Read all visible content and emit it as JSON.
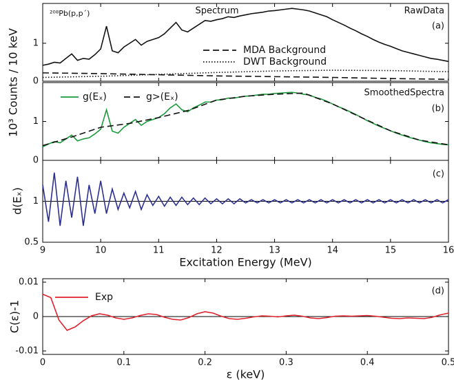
{
  "chart_data": [
    {
      "type": "line",
      "ylabel": "10³ Counts / 10 keV",
      "annotations": [
        "²⁰⁸Pb(p,p´)",
        "Spectrum",
        "RawData",
        "(a)"
      ],
      "xlim": [
        9,
        16
      ],
      "ylim": [
        0,
        2.05
      ],
      "xticks": [
        9,
        10,
        11,
        12,
        13,
        14,
        15,
        16
      ],
      "yticks": [
        0,
        1
      ],
      "x": [
        9,
        9.1,
        9.2,
        9.3,
        9.4,
        9.5,
        9.6,
        9.7,
        9.8,
        9.9,
        10,
        10.1,
        10.2,
        10.3,
        10.4,
        10.5,
        10.6,
        10.7,
        10.8,
        10.9,
        11,
        11.1,
        11.2,
        11.3,
        11.4,
        11.5,
        11.6,
        11.7,
        11.8,
        11.9,
        12,
        12.1,
        12.2,
        12.3,
        12.4,
        12.5,
        12.6,
        12.7,
        12.8,
        12.9,
        13,
        13.1,
        13.2,
        13.3,
        13.4,
        13.5,
        13.6,
        13.7,
        13.8,
        13.9,
        14,
        14.1,
        14.2,
        14.3,
        14.4,
        14.5,
        14.6,
        14.7,
        14.8,
        14.9,
        15,
        15.1,
        15.2,
        15.3,
        15.4,
        15.5,
        15.6,
        15.7,
        15.8,
        15.9,
        16
      ],
      "series": [
        {
          "color": "#111111",
          "dash": "solid",
          "values": [
            0.42,
            0.45,
            0.5,
            0.48,
            0.6,
            0.72,
            0.55,
            0.6,
            0.58,
            0.7,
            0.85,
            1.45,
            0.8,
            0.75,
            0.9,
            1.0,
            1.1,
            0.95,
            1.05,
            1.1,
            1.15,
            1.25,
            1.4,
            1.55,
            1.35,
            1.3,
            1.4,
            1.5,
            1.6,
            1.58,
            1.62,
            1.65,
            1.7,
            1.68,
            1.72,
            1.75,
            1.78,
            1.8,
            1.82,
            1.85,
            1.86,
            1.88,
            1.9,
            1.92,
            1.9,
            1.88,
            1.85,
            1.8,
            1.75,
            1.7,
            1.62,
            1.55,
            1.48,
            1.4,
            1.33,
            1.25,
            1.18,
            1.1,
            1.03,
            0.97,
            0.92,
            0.86,
            0.8,
            0.76,
            0.72,
            0.68,
            0.64,
            0.6,
            0.58,
            0.55,
            0.52
          ]
        },
        {
          "name": "MDA Background",
          "color": "#111111",
          "dash": "dashed",
          "x": [
            9,
            10,
            11,
            12,
            13,
            14,
            15,
            16
          ],
          "values": [
            0.22,
            0.2,
            0.17,
            0.14,
            0.12,
            0.1,
            0.07,
            0.05
          ]
        },
        {
          "name": "DWT Background",
          "color": "#111111",
          "dash": "dotted",
          "x": [
            9,
            10,
            11,
            12,
            13,
            14,
            15,
            16
          ],
          "values": [
            0.1,
            0.13,
            0.18,
            0.23,
            0.27,
            0.29,
            0.28,
            0.25
          ]
        }
      ]
    },
    {
      "type": "line",
      "annotations": [
        "SmoothedSpectra",
        "(b)"
      ],
      "xlim": [
        9,
        16
      ],
      "ylim": [
        0,
        2
      ],
      "xticks": [
        9,
        10,
        11,
        12,
        13,
        14,
        15,
        16
      ],
      "yticks": [
        0,
        1
      ],
      "x": [
        9,
        9.1,
        9.2,
        9.3,
        9.4,
        9.5,
        9.6,
        9.7,
        9.8,
        9.9,
        10,
        10.1,
        10.2,
        10.3,
        10.4,
        10.5,
        10.6,
        10.7,
        10.8,
        10.9,
        11,
        11.1,
        11.2,
        11.3,
        11.4,
        11.5,
        11.6,
        11.7,
        11.8,
        11.9,
        12,
        12.1,
        12.2,
        12.3,
        12.4,
        12.5,
        12.6,
        12.7,
        12.8,
        12.9,
        13,
        13.1,
        13.2,
        13.3,
        13.4,
        13.5,
        13.6,
        13.7,
        13.8,
        13.9,
        14,
        14.1,
        14.2,
        14.3,
        14.4,
        14.5,
        14.6,
        14.7,
        14.8,
        14.9,
        15,
        15.1,
        15.2,
        15.3,
        15.4,
        15.5,
        15.6,
        15.7,
        15.8,
        15.9,
        16
      ],
      "series": [
        {
          "name": "g(Eₓ)",
          "color": "#1a9a3a",
          "dash": "solid",
          "values": [
            0.35,
            0.42,
            0.48,
            0.45,
            0.55,
            0.65,
            0.5,
            0.55,
            0.58,
            0.68,
            0.8,
            1.3,
            0.75,
            0.7,
            0.85,
            0.95,
            1.05,
            0.9,
            1.0,
            1.05,
            1.1,
            1.2,
            1.35,
            1.45,
            1.3,
            1.25,
            1.35,
            1.42,
            1.5,
            1.5,
            1.55,
            1.56,
            1.6,
            1.6,
            1.63,
            1.65,
            1.66,
            1.68,
            1.7,
            1.7,
            1.72,
            1.73,
            1.74,
            1.75,
            1.73,
            1.7,
            1.68,
            1.62,
            1.58,
            1.52,
            1.45,
            1.38,
            1.32,
            1.25,
            1.18,
            1.1,
            1.02,
            0.95,
            0.88,
            0.82,
            0.76,
            0.7,
            0.65,
            0.6,
            0.56,
            0.52,
            0.48,
            0.45,
            0.43,
            0.41,
            0.4
          ]
        },
        {
          "name": "g>(Eₓ)",
          "color": "#111111",
          "dash": "dashed",
          "x": [
            9,
            9.5,
            10,
            10.5,
            11,
            11.5,
            12,
            12.5,
            13,
            13.5,
            14,
            14.5,
            15,
            15.5,
            16
          ],
          "values": [
            0.38,
            0.6,
            0.85,
            0.95,
            1.1,
            1.28,
            1.55,
            1.65,
            1.7,
            1.73,
            1.45,
            1.1,
            0.76,
            0.52,
            0.4
          ]
        }
      ]
    },
    {
      "type": "line",
      "ylabel": "d(Eₓ)",
      "xlabel": "Excitation Energy (MeV)",
      "annotations": [
        "(c)"
      ],
      "hline": 1,
      "xlim": [
        9,
        16
      ],
      "ylim": [
        0.5,
        1.5
      ],
      "xticks": [
        9,
        10,
        11,
        12,
        13,
        14,
        15,
        16
      ],
      "yticks": [
        0.5,
        1
      ],
      "x": [
        9,
        9.1,
        9.2,
        9.3,
        9.4,
        9.5,
        9.6,
        9.7,
        9.8,
        9.9,
        10,
        10.1,
        10.2,
        10.3,
        10.4,
        10.5,
        10.6,
        10.7,
        10.8,
        10.9,
        11,
        11.1,
        11.2,
        11.3,
        11.4,
        11.5,
        11.6,
        11.7,
        11.8,
        11.9,
        12,
        12.1,
        12.2,
        12.3,
        12.4,
        12.5,
        12.6,
        12.7,
        12.8,
        12.9,
        13,
        13.1,
        13.2,
        13.3,
        13.4,
        13.5,
        13.6,
        13.7,
        13.8,
        13.9,
        14,
        14.1,
        14.2,
        14.3,
        14.4,
        14.5,
        14.6,
        14.7,
        14.8,
        14.9,
        15,
        15.1,
        15.2,
        15.3,
        15.4,
        15.5,
        15.6,
        15.7,
        15.8,
        15.9,
        16
      ],
      "series": [
        {
          "color": "#2b2f8f",
          "dash": "solid",
          "values": [
            1.2,
            0.75,
            1.35,
            0.7,
            1.25,
            0.8,
            1.3,
            0.7,
            1.2,
            0.85,
            1.25,
            0.85,
            1.15,
            0.9,
            1.1,
            0.92,
            1.12,
            0.9,
            1.08,
            0.95,
            1.06,
            0.94,
            1.05,
            0.95,
            1.05,
            0.96,
            1.04,
            0.96,
            1.04,
            0.97,
            1.03,
            0.97,
            1.03,
            0.97,
            1.03,
            0.98,
            1.02,
            0.98,
            1.02,
            0.98,
            1.02,
            0.98,
            1.02,
            0.98,
            1.02,
            0.98,
            1.02,
            0.98,
            1.02,
            0.98,
            1.02,
            0.98,
            1.02,
            0.98,
            1.02,
            0.98,
            1.02,
            0.98,
            1.02,
            0.98,
            1.02,
            0.98,
            1.02,
            0.98,
            1.02,
            0.98,
            1.02,
            0.98,
            1.02,
            0.98,
            1.02
          ]
        }
      ]
    },
    {
      "type": "line",
      "ylabel": "C(ε)-1",
      "xlabel": "ε (keV)",
      "annotations": [
        "(d)"
      ],
      "hline": 0,
      "xlim": [
        0,
        0.5
      ],
      "ylim": [
        -0.011,
        0.011
      ],
      "xticks": [
        0,
        0.1,
        0.2,
        0.3,
        0.4,
        0.5
      ],
      "yticks": [
        -0.01,
        0,
        0.01
      ],
      "x": [
        0,
        0.01,
        0.02,
        0.03,
        0.04,
        0.05,
        0.06,
        0.07,
        0.08,
        0.09,
        0.1,
        0.11,
        0.12,
        0.13,
        0.14,
        0.15,
        0.16,
        0.17,
        0.18,
        0.19,
        0.2,
        0.21,
        0.22,
        0.23,
        0.24,
        0.25,
        0.26,
        0.27,
        0.28,
        0.29,
        0.3,
        0.31,
        0.32,
        0.33,
        0.34,
        0.35,
        0.36,
        0.37,
        0.38,
        0.39,
        0.4,
        0.41,
        0.42,
        0.43,
        0.44,
        0.45,
        0.46,
        0.47,
        0.48,
        0.49,
        0.5
      ],
      "series": [
        {
          "name": "Exp",
          "color": "#e0202a",
          "dash": "solid",
          "values": [
            0.0065,
            0.0055,
            -0.001,
            -0.004,
            -0.003,
            -0.0012,
            0.0002,
            0.0008,
            0.0004,
            -0.0004,
            -0.0008,
            -0.0004,
            0.0003,
            0.0008,
            0.0006,
            -0.0002,
            -0.0008,
            -0.001,
            -0.0003,
            0.0008,
            0.0014,
            0.001,
            0.0001,
            -0.0006,
            -0.0008,
            -0.0005,
            -0.0001,
            0.0002,
            0.0001,
            -0.0001,
            0.0002,
            0.0004,
            0.0001,
            -0.0004,
            -0.0006,
            -0.0003,
            0.0001,
            0.0002,
            0.0001,
            0.0002,
            0.0003,
            0.0001,
            -0.0002,
            -0.0005,
            -0.0006,
            -0.0004,
            -0.0005,
            -0.0006,
            -0.0002,
            0.0005,
            0.001
          ]
        }
      ]
    }
  ]
}
